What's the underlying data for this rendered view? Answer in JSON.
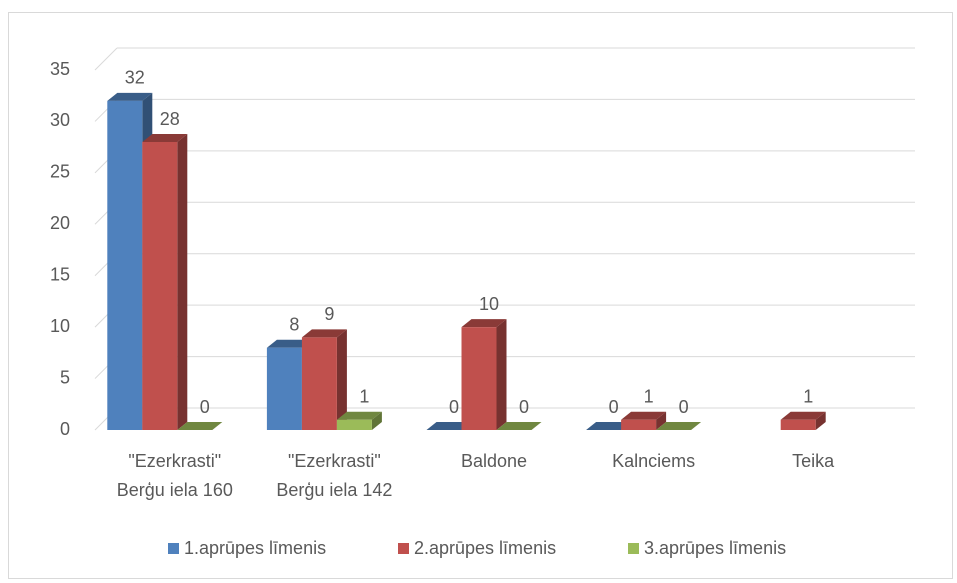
{
  "chart_data": {
    "type": "bar3d",
    "categories": [
      [
        "\"Ezerkrasti\"",
        "Berģu iela 160"
      ],
      [
        "\"Ezerkrasti\"",
        "Berģu iela 142"
      ],
      [
        "Baldone"
      ],
      [
        "Kalnciems"
      ],
      [
        "Teika"
      ]
    ],
    "series": [
      {
        "name": "1.aprūpes līmenis",
        "color": "#4f81bd",
        "values": [
          32,
          8,
          0,
          0,
          null
        ]
      },
      {
        "name": "2.aprūpes līmenis",
        "color": "#c0504d",
        "values": [
          28,
          9,
          10,
          1,
          1
        ]
      },
      {
        "name": "3.aprūpes līmenis",
        "color": "#9bbb59",
        "values": [
          0,
          1,
          0,
          0,
          null
        ]
      }
    ],
    "ylim": [
      0,
      35
    ],
    "yticks": [
      0,
      5,
      10,
      15,
      20,
      25,
      30,
      35
    ],
    "grid": true,
    "legend": "bottom"
  }
}
